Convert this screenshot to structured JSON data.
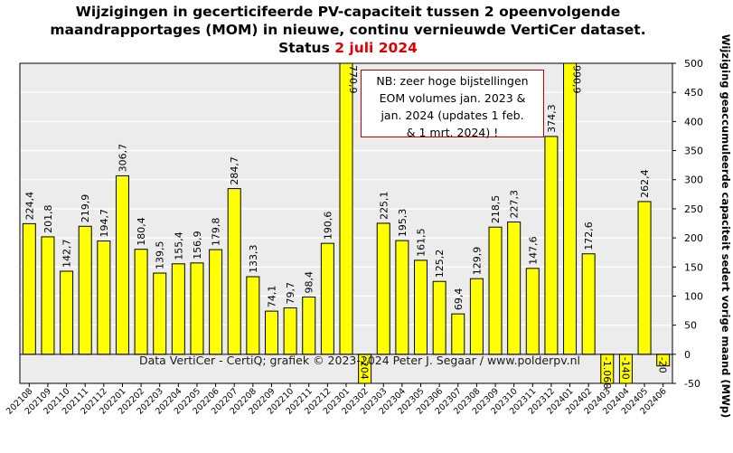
{
  "title": {
    "line1": "Wijzigingen  in gecerticifeerde PV-capaciteit tussen 2 opeenvolgende",
    "line2": "maandrapportages (MOM) in nieuwe, continu vernieuwde VertiCer dataset.",
    "line3_prefix": "Status ",
    "line3_date": "2 juli 2024"
  },
  "note": {
    "line1": "NB:  zeer hoge bijstellingen",
    "line2": "EOM volumes jan. 2023 &",
    "line3": "jan. 2024 (updates 1 feb.",
    "line4": "& 1 mrt. 2024)  !"
  },
  "watermark": "Data VertiCer - CertiQ; grafiek © 2023-2024 Peter J. Segaar / www.polderpv.nl",
  "chart_data": {
    "type": "bar",
    "ylabel": "Wijziging geaccumuleerde capaciteit sedert vorige maand (MWp)",
    "ylim": [
      -50,
      500
    ],
    "yticks": [
      -50,
      0,
      50,
      100,
      150,
      200,
      250,
      300,
      350,
      400,
      450,
      500
    ],
    "grid": true,
    "colors": {
      "bar": "#ffff00",
      "bar_edge": "#000000",
      "plot_bg": "#ececec",
      "grid": "#ffffff"
    },
    "categories": [
      "202108",
      "202109",
      "202110",
      "202111",
      "202112",
      "202201",
      "202202",
      "202203",
      "202204",
      "202205",
      "202206",
      "202207",
      "202208",
      "202209",
      "202210",
      "202211",
      "202212",
      "202301",
      "202302",
      "202303",
      "202304",
      "202305",
      "202306",
      "202307",
      "202308",
      "202309",
      "202310",
      "202311",
      "202312",
      "202401",
      "202402",
      "202403",
      "202404",
      "202405",
      "202406"
    ],
    "values": [
      224.4,
      201.8,
      142.7,
      219.9,
      194.7,
      306.7,
      180.4,
      139.5,
      155.4,
      156.9,
      179.8,
      284.7,
      133.3,
      74.1,
      79.7,
      98.4,
      190.6,
      770.9,
      -204,
      225.1,
      195.3,
      161.5,
      125.2,
      69.4,
      129.9,
      218.5,
      227.3,
      147.6,
      374.3,
      990.9,
      172.6,
      -1060,
      -140,
      262.4,
      -20
    ],
    "value_labels": [
      "224,4",
      "201,8",
      "142,7",
      "219,9",
      "194,7",
      "306,7",
      "180,4",
      "139,5",
      "155,4",
      "156,9",
      "179,8",
      "284,7",
      "133,3",
      "74,1",
      "79,7",
      "98,4",
      "190,6",
      "770,9",
      "-204",
      "225,1",
      "195,3",
      "161,5",
      "125,2",
      "69,4",
      "129,9",
      "218,5",
      "227,3",
      "147,6",
      "374,3",
      "990,9",
      "172,6",
      "-1.060",
      "-140",
      "262,4",
      "-20"
    ]
  }
}
